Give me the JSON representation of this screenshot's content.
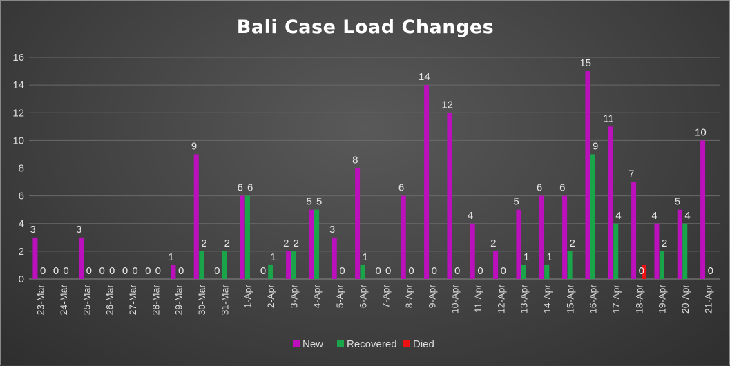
{
  "chart_data": {
    "type": "bar",
    "title": "Bali Case Load Changes",
    "xlabel": "",
    "ylabel": "",
    "ylim": [
      0,
      16
    ],
    "yticks": [
      0,
      2,
      4,
      6,
      8,
      10,
      12,
      14,
      16
    ],
    "grid": true,
    "legend_position": "bottom",
    "categories": [
      "23-Mar",
      "24-Mar",
      "25-Mar",
      "26-Mar",
      "27-Mar",
      "28-Mar",
      "29-Mar",
      "30-Mar",
      "31-Mar",
      "1-Apr",
      "2-Apr",
      "3-Apr",
      "4-Apr",
      "5-Apr",
      "6-Apr",
      "7-Apr",
      "8-Apr",
      "9-Apr",
      "10-Apr",
      "11-Apr",
      "12-Apr",
      "13-Apr",
      "14-Apr",
      "15-Apr",
      "16-Apr",
      "17-Apr",
      "18-Apr",
      "19-Apr",
      "20-Apr",
      "21-Apr"
    ],
    "series": [
      {
        "name": "New",
        "color": "#bb10bb",
        "values": [
          3,
          0,
          3,
          0,
          0,
          0,
          1,
          9,
          0,
          6,
          0,
          2,
          5,
          3,
          8,
          0,
          6,
          14,
          12,
          4,
          2,
          5,
          6,
          6,
          15,
          11,
          7,
          4,
          5,
          10
        ]
      },
      {
        "name": "Recovered",
        "color": "#1aa54a",
        "values": [
          0,
          0,
          0,
          0,
          0,
          0,
          0,
          2,
          2,
          6,
          1,
          2,
          5,
          0,
          1,
          0,
          0,
          0,
          0,
          0,
          0,
          1,
          1,
          2,
          9,
          4,
          0,
          2,
          4,
          0
        ]
      },
      {
        "name": "Died",
        "color": "#ee1111",
        "values": [
          null,
          null,
          null,
          null,
          null,
          null,
          null,
          null,
          null,
          null,
          null,
          null,
          null,
          null,
          null,
          null,
          null,
          null,
          null,
          null,
          null,
          null,
          null,
          null,
          null,
          null,
          1,
          null,
          null,
          null
        ]
      }
    ],
    "data_labels": {
      "New": [
        "3",
        "0",
        "3",
        "0",
        "0",
        "0",
        "1",
        "9",
        "0",
        "6",
        "0",
        "2",
        "5",
        "3",
        "8",
        "0",
        "6",
        "14",
        "12",
        "4",
        "2",
        "5",
        "6",
        "6",
        "15",
        "11",
        "7",
        "4",
        "5",
        "10"
      ],
      "Recovered": [
        "0",
        "0",
        "0",
        "0",
        "0",
        "0",
        "0",
        "2",
        "2",
        "6",
        "1",
        "2",
        "5",
        "0",
        "1",
        "0",
        "0",
        "0",
        "0",
        "0",
        "0",
        "1",
        "1",
        "2",
        "9",
        "4",
        "0",
        "2",
        "4",
        "0"
      ]
    }
  }
}
